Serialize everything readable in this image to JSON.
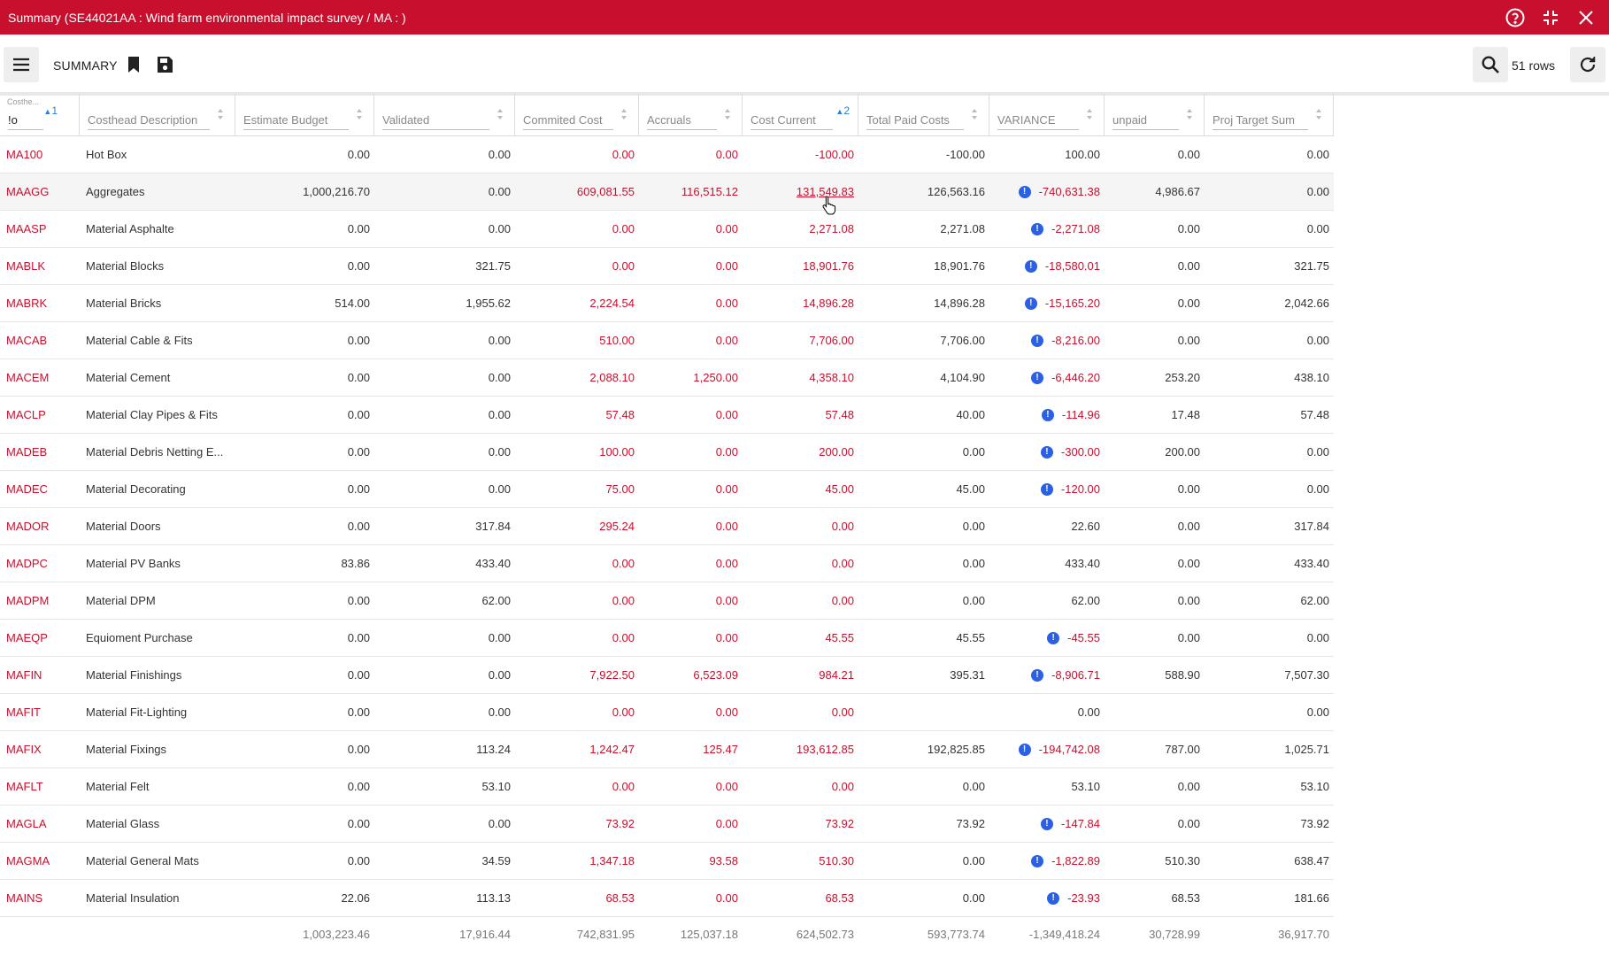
{
  "window": {
    "title": "Summary (SE44021AA : Wind farm environmental impact survey / MA : )",
    "icons": [
      "help-icon",
      "collapse-icon",
      "close-icon"
    ],
    "accent": "#c8102e"
  },
  "toolbar": {
    "summary_label": "SUMMARY",
    "rows_label": "51 rows",
    "icons": [
      "menu-icon",
      "bookmark-icon",
      "save-icon",
      "search-icon",
      "refresh-icon"
    ]
  },
  "grid": {
    "filter": {
      "small_label": "Costhe...",
      "value": "!o",
      "sort_order": "1"
    },
    "columns": [
      {
        "label": "Costhead Description"
      },
      {
        "label": "Estimate Budget"
      },
      {
        "label": "Validated"
      },
      {
        "label": "Commited Cost"
      },
      {
        "label": "Accruals"
      },
      {
        "label": "Cost Current",
        "sort_order": "2"
      },
      {
        "label": "Total Paid Costs"
      },
      {
        "label": "VARIANCE"
      },
      {
        "label": "unpaid"
      },
      {
        "label": "Proj Target Sum"
      }
    ],
    "rows": [
      {
        "code": "MA100",
        "desc": "Hot Box",
        "budget": "0.00",
        "validated": "0.00",
        "committed": "0.00",
        "accruals": "0.00",
        "current": "-100.00",
        "paid": "-100.00",
        "variance": "100.00",
        "warn": false,
        "unpaid": "0.00",
        "target": "0.00"
      },
      {
        "code": "MAAGG",
        "desc": "Aggregates",
        "budget": "1,000,216.70",
        "validated": "0.00",
        "committed": "609,081.55",
        "accruals": "116,515.12",
        "current": "131,549.83",
        "paid": "126,563.16",
        "variance": "-740,631.38",
        "warn": true,
        "unpaid": "4,986.67",
        "target": "0.00"
      },
      {
        "code": "MAASP",
        "desc": "Material Asphalte",
        "budget": "0.00",
        "validated": "0.00",
        "committed": "0.00",
        "accruals": "0.00",
        "current": "2,271.08",
        "paid": "2,271.08",
        "variance": "-2,271.08",
        "warn": true,
        "unpaid": "0.00",
        "target": "0.00"
      },
      {
        "code": "MABLK",
        "desc": "Material Blocks",
        "budget": "0.00",
        "validated": "321.75",
        "committed": "0.00",
        "accruals": "0.00",
        "current": "18,901.76",
        "paid": "18,901.76",
        "variance": "-18,580.01",
        "warn": true,
        "unpaid": "0.00",
        "target": "321.75"
      },
      {
        "code": "MABRK",
        "desc": "Material Bricks",
        "budget": "514.00",
        "validated": "1,955.62",
        "committed": "2,224.54",
        "accruals": "0.00",
        "current": "14,896.28",
        "paid": "14,896.28",
        "variance": "-15,165.20",
        "warn": true,
        "unpaid": "0.00",
        "target": "2,042.66"
      },
      {
        "code": "MACAB",
        "desc": "Material Cable & Fits",
        "budget": "0.00",
        "validated": "0.00",
        "committed": "510.00",
        "accruals": "0.00",
        "current": "7,706.00",
        "paid": "7,706.00",
        "variance": "-8,216.00",
        "warn": true,
        "unpaid": "0.00",
        "target": "0.00"
      },
      {
        "code": "MACEM",
        "desc": "Material Cement",
        "budget": "0.00",
        "validated": "0.00",
        "committed": "2,088.10",
        "accruals": "1,250.00",
        "current": "4,358.10",
        "paid": "4,104.90",
        "variance": "-6,446.20",
        "warn": true,
        "unpaid": "253.20",
        "target": "438.10"
      },
      {
        "code": "MACLP",
        "desc": "Material Clay Pipes & Fits",
        "budget": "0.00",
        "validated": "0.00",
        "committed": "57.48",
        "accruals": "0.00",
        "current": "57.48",
        "paid": "40.00",
        "variance": "-114.96",
        "warn": true,
        "unpaid": "17.48",
        "target": "57.48"
      },
      {
        "code": "MADEB",
        "desc": "Material Debris Netting E...",
        "budget": "0.00",
        "validated": "0.00",
        "committed": "100.00",
        "accruals": "0.00",
        "current": "200.00",
        "paid": "0.00",
        "variance": "-300.00",
        "warn": true,
        "unpaid": "200.00",
        "target": "0.00"
      },
      {
        "code": "MADEC",
        "desc": "Material Decorating",
        "budget": "0.00",
        "validated": "0.00",
        "committed": "75.00",
        "accruals": "0.00",
        "current": "45.00",
        "paid": "45.00",
        "variance": "-120.00",
        "warn": true,
        "unpaid": "0.00",
        "target": "0.00"
      },
      {
        "code": "MADOR",
        "desc": "Material Doors",
        "budget": "0.00",
        "validated": "317.84",
        "committed": "295.24",
        "accruals": "0.00",
        "current": "0.00",
        "paid": "0.00",
        "variance": "22.60",
        "warn": false,
        "unpaid": "0.00",
        "target": "317.84"
      },
      {
        "code": "MADPC",
        "desc": "Material PV Banks",
        "budget": "83.86",
        "validated": "433.40",
        "committed": "0.00",
        "accruals": "0.00",
        "current": "0.00",
        "paid": "0.00",
        "variance": "433.40",
        "warn": false,
        "unpaid": "0.00",
        "target": "433.40"
      },
      {
        "code": "MADPM",
        "desc": "Material DPM",
        "budget": "0.00",
        "validated": "62.00",
        "committed": "0.00",
        "accruals": "0.00",
        "current": "0.00",
        "paid": "0.00",
        "variance": "62.00",
        "warn": false,
        "unpaid": "0.00",
        "target": "62.00"
      },
      {
        "code": "MAEQP",
        "desc": "Equioment Purchase",
        "budget": "0.00",
        "validated": "0.00",
        "committed": "0.00",
        "accruals": "0.00",
        "current": "45.55",
        "paid": "45.55",
        "variance": "-45.55",
        "warn": true,
        "unpaid": "0.00",
        "target": "0.00"
      },
      {
        "code": "MAFIN",
        "desc": "Material Finishings",
        "budget": "0.00",
        "validated": "0.00",
        "committed": "7,922.50",
        "accruals": "6,523.09",
        "current": "984.21",
        "paid": "395.31",
        "variance": "-8,906.71",
        "warn": true,
        "unpaid": "588.90",
        "target": "7,507.30"
      },
      {
        "code": "MAFIT",
        "desc": "Material Fit-Lighting",
        "budget": "0.00",
        "validated": "0.00",
        "committed": "0.00",
        "accruals": "0.00",
        "current": "0.00",
        "paid": "",
        "variance": "0.00",
        "warn": false,
        "unpaid": "",
        "target": "0.00"
      },
      {
        "code": "MAFIX",
        "desc": "Material Fixings",
        "budget": "0.00",
        "validated": "113.24",
        "committed": "1,242.47",
        "accruals": "125.47",
        "current": "193,612.85",
        "paid": "192,825.85",
        "variance": "-194,742.08",
        "warn": true,
        "unpaid": "787.00",
        "target": "1,025.71"
      },
      {
        "code": "MAFLT",
        "desc": "Material Felt",
        "budget": "0.00",
        "validated": "53.10",
        "committed": "0.00",
        "accruals": "0.00",
        "current": "0.00",
        "paid": "0.00",
        "variance": "53.10",
        "warn": false,
        "unpaid": "0.00",
        "target": "53.10"
      },
      {
        "code": "MAGLA",
        "desc": "Material Glass",
        "budget": "0.00",
        "validated": "0.00",
        "committed": "73.92",
        "accruals": "0.00",
        "current": "73.92",
        "paid": "73.92",
        "variance": "-147.84",
        "warn": true,
        "unpaid": "0.00",
        "target": "73.92"
      },
      {
        "code": "MAGMA",
        "desc": "Material General Mats",
        "budget": "0.00",
        "validated": "34.59",
        "committed": "1,347.18",
        "accruals": "93.58",
        "current": "510.30",
        "paid": "0.00",
        "variance": "-1,822.89",
        "warn": true,
        "unpaid": "510.30",
        "target": "638.47"
      },
      {
        "code": "MAINS",
        "desc": "Material Insulation",
        "budget": "22.06",
        "validated": "113.13",
        "committed": "68.53",
        "accruals": "0.00",
        "current": "68.53",
        "paid": "0.00",
        "variance": "-23.93",
        "warn": true,
        "unpaid": "68.53",
        "target": "181.66"
      }
    ],
    "totals": {
      "budget": "1,003,223.46",
      "validated": "17,916.44",
      "committed": "742,831.95",
      "accruals": "125,037.18",
      "current": "624,502.73",
      "paid": "593,773.74",
      "variance": "-1,349,418.24",
      "unpaid": "30,728.99",
      "target": "36,917.70"
    },
    "highlight_row": "MAAGG",
    "colors": {
      "negative": "#c8102e",
      "warning": "#2a60e6",
      "sort": "#2a7de1"
    }
  }
}
